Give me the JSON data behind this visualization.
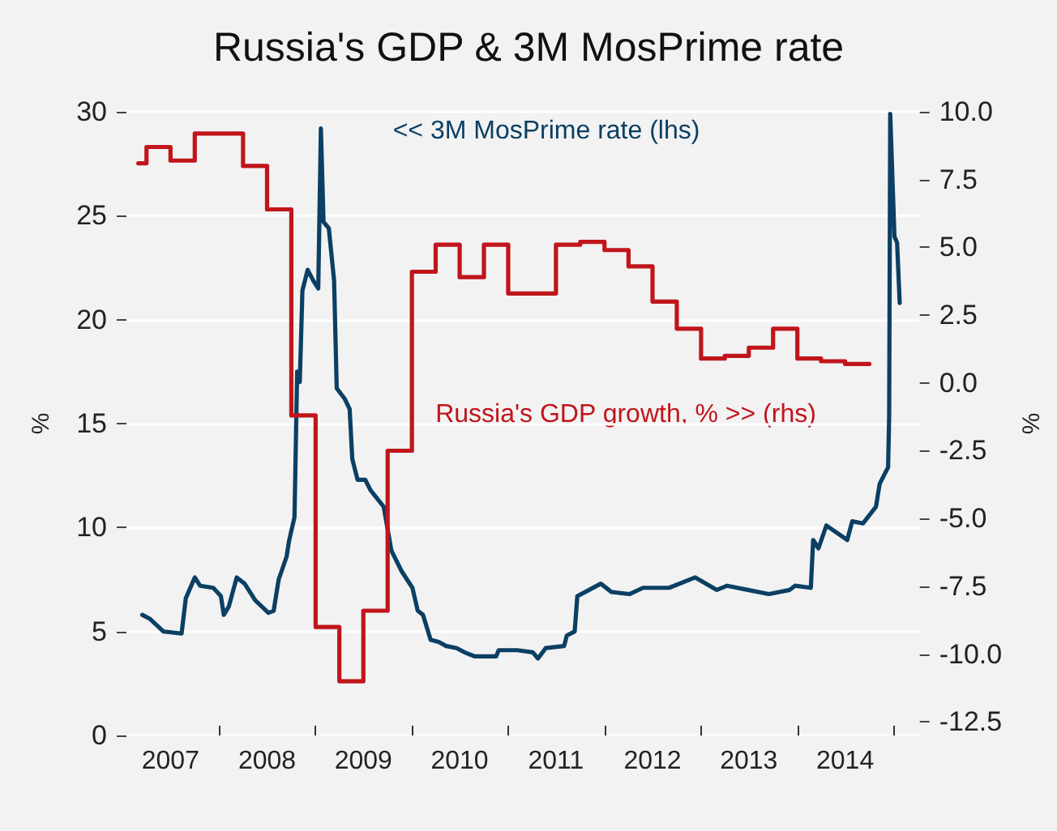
{
  "chart_data": {
    "type": "line",
    "title": "Russia's GDP & 3M MosPrime rate",
    "ylabel": "%",
    "y2label": "%",
    "xlim": [
      "2007-01-15",
      "2015-04-10"
    ],
    "xticks": [
      {
        "value": "2007-07-01",
        "label": "2007"
      },
      {
        "value": "2008-01-01",
        "label": null
      },
      {
        "value": "2008-07-01",
        "label": "2008"
      },
      {
        "value": "2009-01-01",
        "label": null
      },
      {
        "value": "2009-07-01",
        "label": "2009"
      },
      {
        "value": "2010-01-01",
        "label": null
      },
      {
        "value": "2010-07-01",
        "label": "2010"
      },
      {
        "value": "2011-01-01",
        "label": null
      },
      {
        "value": "2011-07-01",
        "label": "2011"
      },
      {
        "value": "2012-01-01",
        "label": null
      },
      {
        "value": "2012-07-01",
        "label": "2012"
      },
      {
        "value": "2013-01-01",
        "label": null
      },
      {
        "value": "2013-07-01",
        "label": "2013"
      },
      {
        "value": "2014-01-01",
        "label": null
      },
      {
        "value": "2014-07-01",
        "label": "2014"
      },
      {
        "value": "2015-01-01",
        "label": null
      }
    ],
    "ylim": [
      0,
      30
    ],
    "yticks": [
      0,
      5,
      10,
      15,
      20,
      25,
      30
    ],
    "y2lim": [
      -13,
      10
    ],
    "y2ticks": [
      -12.5,
      {
        "value": -10,
        "label": "-10.0"
      },
      -7.5,
      {
        "value": -5,
        "label": "-5.0"
      },
      -2.5,
      {
        "value": 0,
        "label": "0.0"
      },
      2.5,
      {
        "value": 5,
        "label": "5.0"
      },
      7.5,
      {
        "value": 10,
        "label": "10.0"
      }
    ],
    "grid": "y",
    "legend": false,
    "series": [
      {
        "name": "<< 3M MosPrime rate (lhs)",
        "color": "#0b3f63",
        "x": [
          "2007-03-16",
          "2007-04-15",
          "2007-06-04",
          "2007-08-12",
          "2007-08-28",
          "2007-10-01",
          "2007-10-21",
          "2007-12-10",
          "2008-01-08",
          "2008-01-19",
          "2008-02-07",
          "2008-03-08",
          "2008-04-07",
          "2008-05-17",
          "2008-07-06",
          "2008-07-26",
          "2008-08-14",
          "2008-09-13",
          "2008-09-23",
          "2008-10-13",
          "2008-10-23",
          "2008-11-02",
          "2008-11-12",
          "2008-12-02",
          "2008-12-22",
          "2009-01-11",
          "2009-01-21",
          "2009-01-31",
          "2009-02-20",
          "2009-03-12",
          "2009-03-22",
          "2009-04-21",
          "2009-05-10",
          "2009-05-20",
          "2009-06-09",
          "2009-07-08",
          "2009-07-28",
          "2009-09-16",
          "2009-10-15",
          "2009-11-23",
          "2010-01-03",
          "2010-01-23",
          "2010-02-12",
          "2010-03-13",
          "2010-04-12",
          "2010-05-11",
          "2010-06-20",
          "2010-07-19",
          "2010-08-28",
          "2010-11-16",
          "2010-11-26",
          "2011-02-04",
          "2011-04-04",
          "2011-04-24",
          "2011-05-23",
          "2011-08-01",
          "2011-08-11",
          "2011-09-10",
          "2011-09-20",
          "2011-10-20",
          "2011-12-18",
          "2012-01-27",
          "2012-04-06",
          "2012-05-26",
          "2012-09-02",
          "2012-12-10",
          "2013-03-01",
          "2013-04-10",
          "2013-06-28",
          "2013-09-15",
          "2013-12-03",
          "2013-12-23",
          "2014-02-21",
          "2014-03-02",
          "2014-03-22",
          "2014-04-21",
          "2014-07-09",
          "2014-07-28",
          "2014-09-07",
          "2014-10-26",
          "2014-11-09",
          "2014-12-11",
          "2014-12-15",
          "2014-12-19",
          "2015-01-04",
          "2015-01-14",
          "2015-01-24"
        ],
        "values": [
          5.8,
          5.6,
          5.0,
          4.9,
          6.6,
          7.6,
          7.2,
          7.1,
          6.7,
          5.8,
          6.2,
          7.6,
          7.3,
          6.5,
          5.9,
          6.0,
          7.5,
          8.6,
          9.4,
          10.5,
          17.5,
          17.0,
          21.4,
          22.4,
          21.9,
          21.5,
          29.2,
          24.7,
          24.4,
          21.9,
          16.7,
          16.2,
          15.7,
          13.3,
          12.3,
          12.3,
          11.8,
          11.0,
          8.9,
          7.9,
          7.1,
          6.0,
          5.8,
          4.6,
          4.5,
          4.3,
          4.2,
          4.0,
          3.8,
          3.8,
          4.1,
          4.1,
          4.0,
          3.7,
          4.2,
          4.3,
          4.8,
          5.0,
          6.7,
          6.9,
          7.3,
          6.9,
          6.8,
          7.1,
          7.1,
          7.6,
          7.0,
          7.2,
          7.0,
          6.8,
          7.0,
          7.2,
          7.1,
          9.4,
          9.0,
          10.1,
          9.4,
          10.3,
          10.2,
          11.0,
          12.1,
          12.9,
          15.4,
          29.9,
          24.0,
          23.7,
          20.8
        ]
      },
      {
        "name": "Russia's GDP growth, % >> (rhs)",
        "color": "#c0151b",
        "type": "step",
        "axis": "y2",
        "x": [
          "2007-03-01",
          "2007-04-01",
          "2007-07-01",
          "2007-10-01",
          "2008-04-01",
          "2008-07-01",
          "2008-10-01",
          "2009-01-01",
          "2009-04-01",
          "2009-07-01",
          "2009-10-01",
          "2010-01-01",
          "2010-04-01",
          "2010-07-01",
          "2010-10-01",
          "2011-01-01",
          "2011-07-01",
          "2011-10-01",
          "2012-01-01",
          "2012-04-01",
          "2012-07-01",
          "2012-10-01",
          "2013-01-01",
          "2013-04-01",
          "2013-07-01",
          "2013-10-01",
          "2014-01-01",
          "2014-04-01",
          "2014-07-01",
          "2014-10-01"
        ],
        "values": [
          8.1,
          8.7,
          8.2,
          9.2,
          8.0,
          6.4,
          -1.2,
          -9.0,
          -11.0,
          -8.4,
          -2.5,
          4.1,
          5.1,
          3.9,
          5.1,
          3.3,
          5.1,
          5.2,
          4.9,
          4.3,
          3.0,
          2.0,
          0.9,
          1.0,
          1.3,
          2.0,
          0.9,
          0.8,
          0.7,
          0.7
        ]
      }
    ]
  }
}
